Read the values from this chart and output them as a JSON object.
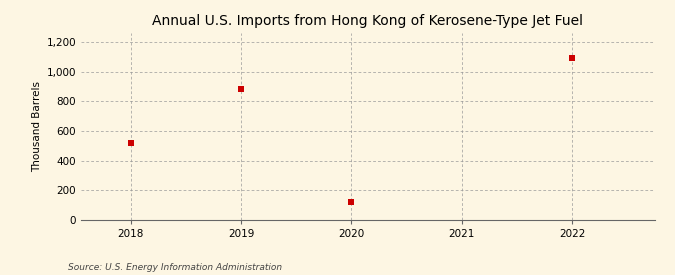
{
  "title": "Annual U.S. Imports from Hong Kong of Kerosene-Type Jet Fuel",
  "ylabel": "Thousand Barrels",
  "source": "Source: U.S. Energy Information Administration",
  "x_values": [
    2018,
    2019,
    2020,
    2022
  ],
  "y_values": [
    520,
    880,
    120,
    1090
  ],
  "x_ticks": [
    2018,
    2019,
    2020,
    2021,
    2022
  ],
  "ylim": [
    0,
    1260
  ],
  "yticks": [
    0,
    200,
    400,
    600,
    800,
    1000,
    1200
  ],
  "marker_color": "#cc0000",
  "marker": "s",
  "marker_size": 4,
  "bg_color": "#fdf6e3",
  "grid_color": "#999999",
  "title_fontsize": 10,
  "label_fontsize": 7.5,
  "tick_fontsize": 7.5,
  "source_fontsize": 6.5,
  "xlim_left": 2017.55,
  "xlim_right": 2022.75
}
